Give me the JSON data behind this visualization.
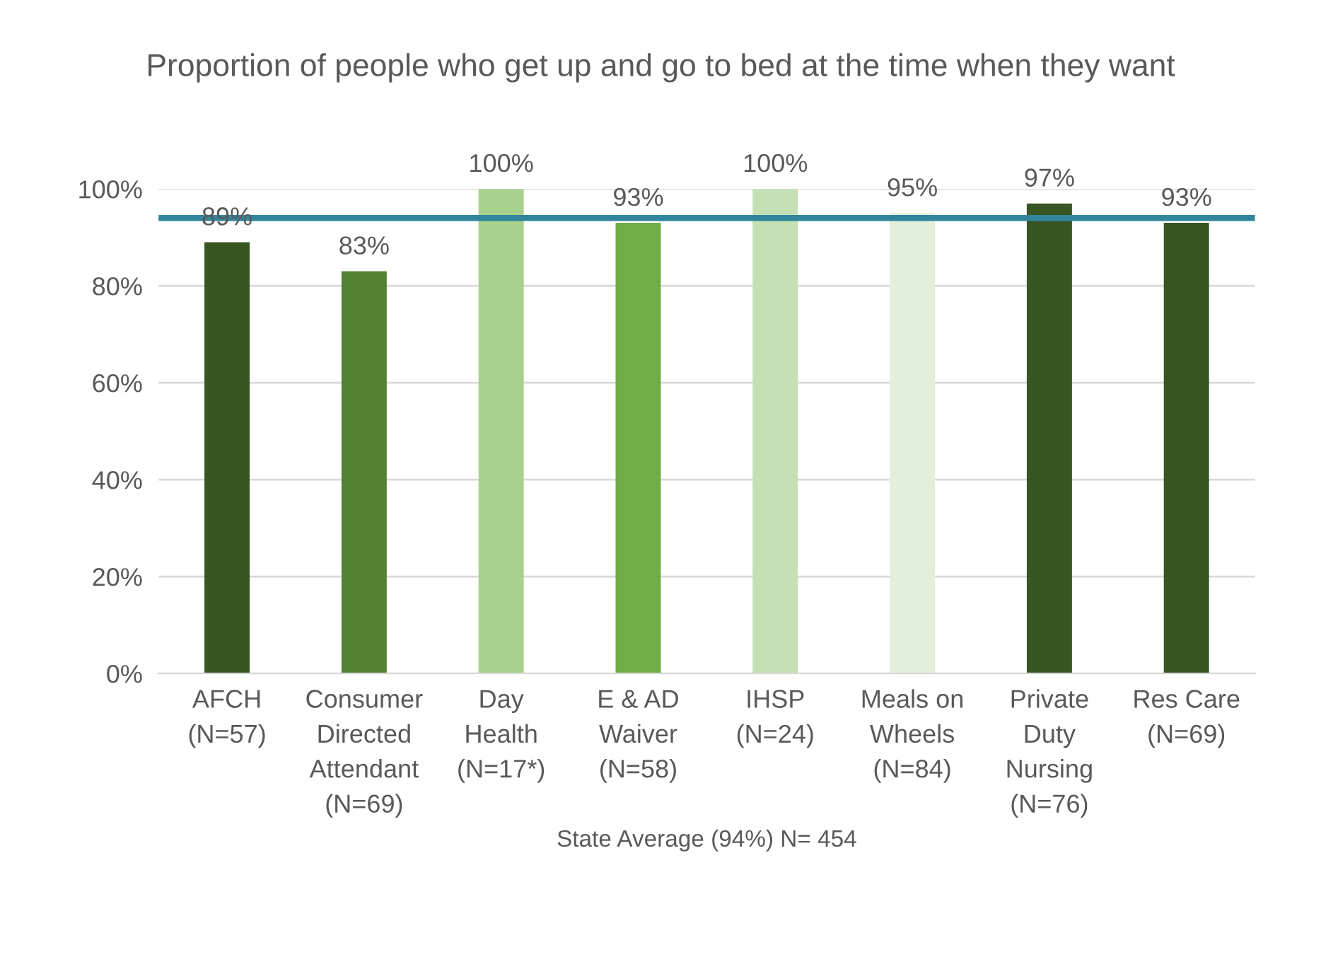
{
  "chart_data": {
    "type": "bar",
    "title": "Proportion of people who get up and go to bed at the time when they want",
    "categories": [
      "AFCH\n(N=57)",
      "Consumer\nDirected\nAttendant\n(N=69)",
      "Day\nHealth\n(N=17*)",
      "E & AD\nWaiver\n(N=58)",
      "IHSP\n(N=24)",
      "Meals on\nWheels\n(N=84)",
      "Private\nDuty\nNursing\n(N=76)",
      "Res Care\n(N=69)"
    ],
    "values": [
      89,
      83,
      100,
      93,
      100,
      95,
      97,
      93
    ],
    "colors": [
      "#375623",
      "#548235",
      "#a9d18e",
      "#70ad47",
      "#c5e0b4",
      "#e2efda",
      "#375623",
      "#375623"
    ],
    "value_labels": [
      "89%",
      "83%",
      "100%",
      "93%",
      "100%",
      "95%",
      "97%",
      "93%"
    ],
    "xlabel": "State Average (94%) N= 454",
    "ylim": [
      0,
      100
    ],
    "yticks": [
      {
        "value": 0,
        "label": "0%"
      },
      {
        "value": 20,
        "label": "20%"
      },
      {
        "value": 40,
        "label": "40%"
      },
      {
        "value": 60,
        "label": "60%"
      },
      {
        "value": 80,
        "label": "80%"
      },
      {
        "value": 100,
        "label": "100%"
      }
    ],
    "ref_lines": [
      {
        "axis": "y",
        "value": 94,
        "label": null,
        "color": "#31859c"
      }
    ],
    "grid": "y",
    "legend": false
  }
}
